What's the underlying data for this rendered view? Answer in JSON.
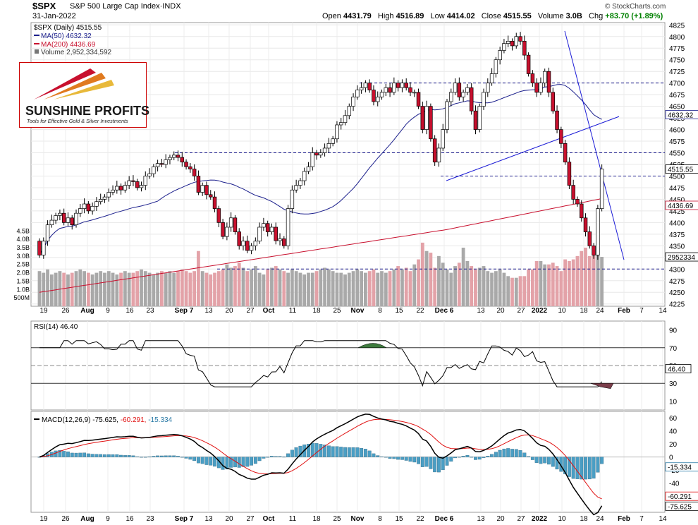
{
  "header": {
    "symbol": "$SPX",
    "name": "S&P 500 Large Cap Index",
    "exchange": "INDX",
    "date": "31-Jan-2022",
    "open_label": "Open",
    "open": "4431.79",
    "high_label": "High",
    "high": "4516.89",
    "low_label": "Low",
    "low": "4414.02",
    "close_label": "Close",
    "close": "4515.55",
    "volume_label": "Volume",
    "volume": "3.0B",
    "chg_label": "Chg",
    "chg": "+83.70 (+1.89%)",
    "credit": "© StockCharts.com"
  },
  "logo": {
    "title": "SUNSHINE PROFITS",
    "subtitle": "Tools for Effective Gold & Silver Investments"
  },
  "colors": {
    "up": "#ffffff",
    "down": "#c8102e",
    "ma50": "#1b1f8c",
    "ma200": "#c8102e",
    "vol_up": "#a9a9a9",
    "vol_down": "#e3a2a8",
    "trend": "#1c1cd6",
    "hist": "#4a9ec4"
  },
  "chart_data": [
    {
      "type": "candlestick",
      "legend": {
        "main": "$SPX (Daily) 4515.55",
        "ma50": "MA(50) 4632.32",
        "ma200": "MA(200) 4436.69",
        "volume": "Volume 2,952,334,592"
      },
      "ylim": [
        4220,
        4830
      ],
      "yticks": [
        "4225",
        "4250",
        "4275",
        "4300",
        "4325",
        "4350",
        "4375",
        "4400",
        "4425",
        "4450",
        "4475",
        "4500",
        "4525",
        "4550",
        "4575",
        "4600",
        "4625",
        "4650",
        "4675",
        "4700",
        "4725",
        "4750",
        "4775",
        "4800",
        "4825"
      ],
      "price_tags": {
        "close": "4515.55",
        "ma50": "4632.32",
        "ma200": "4436.69",
        "volume": "2952334"
      },
      "volume_ylim": [
        0,
        5.0
      ],
      "volume_ticks": [
        "500M",
        "1.0B",
        "1.5B",
        "2.0B",
        "2.5B",
        "3.0B",
        "3.5B",
        "4.0B",
        "4.5B"
      ],
      "support_levels": [
        4700,
        4550,
        4500,
        4300
      ],
      "x_labels": [
        "19",
        "26",
        "Aug",
        "9",
        "16",
        "23",
        "Sep 7",
        "13",
        "20",
        "27",
        "Oct",
        "11",
        "18",
        "25",
        "Nov",
        "8",
        "15",
        "22",
        "Dec 6",
        "13",
        "20",
        "27",
        "2022",
        "10",
        "18",
        "24",
        "Feb",
        "7",
        "14"
      ],
      "seed_close": 4360,
      "closes": [
        4330,
        4360,
        4395,
        4405,
        4415,
        4420,
        4400,
        4410,
        4395,
        4420,
        4430,
        4440,
        4425,
        4435,
        4445,
        4450,
        4455,
        4465,
        4470,
        4478,
        4470,
        4480,
        4490,
        4488,
        4475,
        4480,
        4500,
        4505,
        4520,
        4527,
        4525,
        4535,
        4540,
        4545,
        4540,
        4530,
        4520,
        4515,
        4500,
        4465,
        4480,
        4460,
        4455,
        4430,
        4400,
        4370,
        4390,
        4410,
        4380,
        4350,
        4360,
        4340,
        4350,
        4360,
        4390,
        4398,
        4380,
        4390,
        4361,
        4365,
        4350,
        4430,
        4470,
        4480,
        4490,
        4510,
        4520,
        4550,
        4545,
        4550,
        4560,
        4570,
        4580,
        4610,
        4615,
        4630,
        4650,
        4670,
        4685,
        4690,
        4700,
        4685,
        4660,
        4670,
        4680,
        4690,
        4680,
        4700,
        4690,
        4700,
        4690,
        4680,
        4680,
        4650,
        4600,
        4650,
        4580,
        4530,
        4560,
        4600,
        4660,
        4680,
        4700,
        4670,
        4680,
        4690,
        4640,
        4600,
        4650,
        4680,
        4700,
        4720,
        4750,
        4770,
        4785,
        4790,
        4780,
        4800,
        4790,
        4760,
        4720,
        4700,
        4680,
        4700,
        4725,
        4680,
        4640,
        4600,
        4570,
        4530,
        4480,
        4450,
        4440,
        4410,
        4380,
        4350,
        4330,
        4430,
        4515
      ],
      "volumes": [
        2.1,
        2.0,
        2.2,
        1.9,
        2.0,
        2.1,
        2.0,
        1.9,
        2.0,
        2.1,
        2.2,
        2.1,
        2.0,
        1.9,
        2.0,
        2.1,
        2.0,
        2.1,
        2.0,
        1.9,
        2.0,
        2.1,
        2.0,
        2.0,
        2.1,
        2.2,
        2.1,
        2.0,
        1.9,
        2.0,
        2.1,
        2.0,
        2.1,
        2.0,
        2.1,
        2.2,
        2.1,
        2.0,
        2.1,
        3.3,
        2.1,
        2.0,
        1.9,
        2.0,
        2.1,
        2.2,
        2.5,
        2.3,
        2.4,
        2.6,
        2.3,
        2.1,
        2.2,
        2.4,
        2.0,
        1.9,
        2.2,
        2.3,
        2.4,
        2.2,
        2.1,
        2.0,
        2.2,
        2.1,
        2.0,
        1.9,
        2.0,
        2.0,
        2.1,
        2.2,
        2.3,
        2.2,
        2.1,
        2.0,
        2.0,
        1.9,
        2.0,
        2.1,
        2.2,
        2.1,
        2.0,
        2.1,
        2.2,
        2.0,
        2.1,
        2.0,
        2.1,
        2.2,
        2.4,
        2.2,
        2.3,
        2.1,
        2.5,
        2.8,
        3.8,
        3.3,
        3.2,
        2.3,
        3.0,
        2.6,
        2.2,
        2.0,
        2.4,
        2.6,
        3.5,
        2.7,
        2.4,
        2.2,
        2.3,
        2.4,
        2.1,
        2.0,
        2.1,
        2.2,
        2.0,
        1.8,
        1.7,
        1.7,
        1.8,
        1.8,
        2.2,
        2.2,
        2.7,
        2.7,
        2.5,
        2.5,
        2.6,
        2.4,
        2.1,
        2.8,
        2.7,
        2.8,
        3.0,
        3.3,
        3.5,
        3.0,
        3.3,
        3.2,
        2.95
      ]
    },
    {
      "type": "line",
      "label": "RSI(14) 46.40",
      "ylim": [
        0,
        100
      ],
      "yticks": [
        "10",
        "30",
        "50",
        "70",
        "90"
      ],
      "levels": [
        70,
        50,
        30
      ],
      "tag": "46.40"
    },
    {
      "type": "line",
      "label_name": "MACD(12,26,9)",
      "label_macd": "-75.625,",
      "label_signal": "-60.291,",
      "label_hist": "-15.334",
      "ylim": [
        -85,
        70
      ],
      "yticks": [
        "-40",
        "-20",
        "0",
        "20",
        "40",
        "60"
      ],
      "tags": {
        "hist": "-15.334",
        "signal": "-60.291",
        "macd": "-75.625"
      }
    }
  ]
}
